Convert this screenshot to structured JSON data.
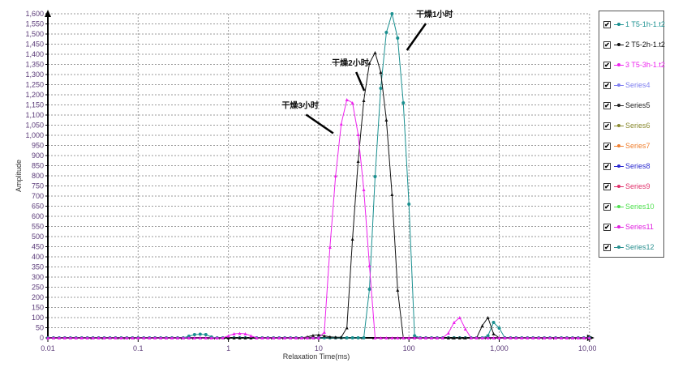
{
  "chart_data": {
    "type": "line",
    "title": "",
    "xlabel": "Relaxation Time(ms)",
    "ylabel": "Amplitude",
    "x_scale": "log",
    "xlim": [
      0.01,
      10000
    ],
    "ylim": [
      0,
      1600
    ],
    "y_step": 50,
    "grid": true,
    "legend_position": "right",
    "x_tick_labels": [
      "0.01",
      "0.1",
      "1",
      "10",
      "100",
      "1,000",
      "10,000"
    ],
    "x_tick_values": [
      0.01,
      0.1,
      1,
      10,
      100,
      1000,
      10000
    ],
    "x": [
      0.01,
      0.01155,
      0.01334,
      0.0154,
      0.01778,
      0.02054,
      0.02371,
      0.02738,
      0.03162,
      0.03652,
      0.04217,
      0.0487,
      0.05623,
      0.06494,
      0.07499,
      0.0866,
      0.1,
      0.1155,
      0.1334,
      0.154,
      0.1778,
      0.2054,
      0.2371,
      0.2738,
      0.3162,
      0.3652,
      0.4217,
      0.487,
      0.5623,
      0.6494,
      0.7499,
      0.866,
      1,
      1.155,
      1.334,
      1.54,
      1.778,
      2.054,
      2.371,
      2.738,
      3.162,
      3.652,
      4.217,
      4.87,
      5.623,
      6.494,
      7.499,
      8.66,
      10,
      11.55,
      13.34,
      15.4,
      17.78,
      20.54,
      23.71,
      27.38,
      31.62,
      36.52,
      42.17,
      48.7,
      56.23,
      64.94,
      74.99,
      86.6,
      100,
      115.5,
      133.4,
      154,
      177.8,
      205.4,
      237.1,
      273.8,
      316.2,
      365.2,
      421.7,
      487,
      562.3,
      649.4,
      749.9,
      866,
      1000,
      1155,
      1334,
      1540,
      1778,
      2054,
      2371,
      2738,
      3162,
      3652,
      4217,
      4870,
      5623,
      6494,
      7499,
      8660,
      10000
    ],
    "series": [
      {
        "name": "1 T5-1h-1.t2",
        "color": "#1a9090",
        "marker": "circle",
        "values": [
          0,
          0,
          0,
          0,
          0,
          0,
          0,
          0,
          0,
          0,
          0,
          0,
          0,
          0,
          0,
          0,
          0,
          0,
          0,
          0,
          0,
          0,
          0,
          0,
          0,
          8,
          16,
          18,
          16,
          4,
          0,
          0,
          0,
          0,
          0,
          0,
          0,
          0,
          0,
          0,
          0,
          0,
          0,
          0,
          0,
          0,
          0,
          0,
          0,
          0,
          0,
          0,
          0,
          0,
          0,
          0,
          0,
          240,
          796,
          1232,
          1508,
          1600,
          1480,
          1160,
          660,
          10,
          0,
          0,
          0,
          0,
          0,
          0,
          0,
          0,
          0,
          0,
          0,
          0,
          10,
          76,
          48,
          0,
          0,
          0,
          0,
          0,
          0,
          0,
          0,
          0,
          0,
          0,
          0,
          0,
          0,
          0,
          0
        ]
      },
      {
        "name": "2 T5-2h-1.t2",
        "color": "#111111",
        "marker": "triangle",
        "values": [
          0,
          0,
          0,
          0,
          0,
          0,
          0,
          0,
          0,
          0,
          0,
          0,
          0,
          0,
          0,
          0,
          0,
          0,
          0,
          0,
          0,
          0,
          0,
          0,
          0,
          0,
          0,
          0,
          0,
          0,
          0,
          0,
          0,
          0,
          0,
          0,
          0,
          0,
          0,
          0,
          0,
          0,
          0,
          0,
          0,
          0,
          5,
          12,
          15,
          10,
          5,
          3,
          3,
          50,
          488,
          872,
          1172,
          1356,
          1408,
          1312,
          1076,
          708,
          236,
          0,
          0,
          0,
          0,
          0,
          0,
          0,
          0,
          0,
          0,
          0,
          0,
          0,
          0,
          60,
          100,
          20,
          0,
          0,
          0,
          0,
          0,
          0,
          0,
          0,
          0,
          0,
          0,
          0,
          0,
          0,
          0,
          0,
          0
        ]
      },
      {
        "name": "3 T5-3h-1.t2",
        "color": "#ee22ee",
        "marker": "triangle",
        "values": [
          0,
          0,
          0,
          0,
          0,
          0,
          0,
          0,
          0,
          0,
          0,
          0,
          0,
          0,
          0,
          0,
          0,
          0,
          0,
          0,
          0,
          0,
          0,
          0,
          0,
          0,
          0,
          0,
          0,
          0,
          0,
          0,
          10,
          20,
          22,
          20,
          10,
          0,
          0,
          0,
          0,
          0,
          0,
          0,
          0,
          0,
          0,
          0,
          0,
          28,
          448,
          800,
          1056,
          1176,
          1160,
          1004,
          732,
          356,
          0,
          0,
          0,
          0,
          0,
          0,
          0,
          0,
          0,
          0,
          0,
          0,
          0,
          24,
          76,
          100,
          44,
          0,
          0,
          0,
          0,
          0,
          0,
          0,
          0,
          0,
          0,
          0,
          0,
          0,
          0,
          0,
          0,
          0,
          0,
          0,
          0,
          0,
          0
        ]
      }
    ],
    "annotations": [
      {
        "text": "干燥1小时",
        "x": 120,
        "y": 1600,
        "arrow_to": [
          95,
          1420
        ]
      },
      {
        "text": "干燥2小时",
        "x": 14,
        "y": 1360,
        "arrow_to": [
          32,
          1220
        ]
      },
      {
        "text": "干燥3小时",
        "x": 3.9,
        "y": 1150,
        "arrow_to": [
          14.5,
          1010
        ]
      }
    ]
  },
  "legend": {
    "items": [
      {
        "label": "1 T5-1h-1.t2",
        "color": "#1a9090",
        "checked": true
      },
      {
        "label": "2 T5-2h-1.t2",
        "color": "#111111",
        "checked": true
      },
      {
        "label": "3 T5-3h-1.t2",
        "color": "#ee22ee",
        "checked": true
      },
      {
        "label": "Series4",
        "color": "#8080f0",
        "checked": true
      },
      {
        "label": "Series5",
        "color": "#222222",
        "checked": true
      },
      {
        "label": "Series6",
        "color": "#8a8a30",
        "checked": true
      },
      {
        "label": "Series7",
        "color": "#f08030",
        "checked": true
      },
      {
        "label": "Series8",
        "color": "#2a2ad0",
        "checked": true
      },
      {
        "label": "Series9",
        "color": "#e0306a",
        "checked": true
      },
      {
        "label": "Series10",
        "color": "#50e050",
        "checked": true
      },
      {
        "label": "Series11",
        "color": "#e020e0",
        "checked": true
      },
      {
        "label": "Series12",
        "color": "#2a9090",
        "checked": true
      }
    ],
    "check_glyph": "✔"
  }
}
